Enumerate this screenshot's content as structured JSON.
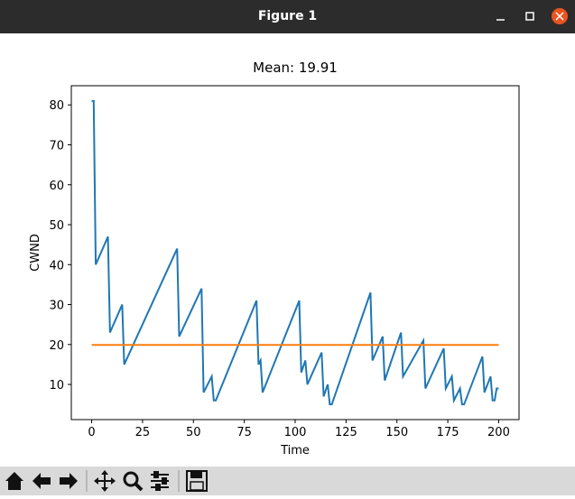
{
  "window": {
    "title": "Figure 1"
  },
  "chart_data": {
    "type": "line",
    "title": "Mean: 19.91",
    "xlabel": "Time",
    "ylabel": "CWND",
    "xlim": [
      -10,
      210
    ],
    "ylim": [
      1.2,
      84.8
    ],
    "xticks": [
      0,
      25,
      50,
      75,
      100,
      125,
      150,
      175,
      200
    ],
    "yticks": [
      10,
      20,
      30,
      40,
      50,
      60,
      70,
      80
    ],
    "series": [
      {
        "color": "#1f77b4",
        "x": [
          0,
          1,
          2,
          8,
          9,
          15,
          16,
          42,
          43,
          54,
          55,
          59,
          60,
          61,
          81,
          82,
          83,
          84,
          102,
          103,
          105,
          106,
          113,
          114,
          116,
          117,
          118,
          137,
          138,
          143,
          144,
          152,
          153,
          163,
          164,
          173,
          174,
          177,
          178,
          181,
          182,
          183,
          192,
          193,
          196,
          197,
          198,
          199,
          200
        ],
        "values": [
          81,
          81,
          40,
          47,
          23,
          30,
          15,
          44,
          22,
          34,
          8,
          12,
          6,
          6,
          31,
          15,
          16,
          8,
          31,
          13,
          16,
          10,
          18,
          7,
          10,
          5,
          5,
          33,
          16,
          22,
          11,
          23,
          12,
          21,
          9,
          19,
          9,
          12,
          6,
          9,
          5,
          5,
          17,
          8,
          12,
          6,
          6,
          9,
          9
        ]
      },
      {
        "color": "#ff7f0e",
        "x": [
          0,
          200
        ],
        "values": [
          19.91,
          19.91
        ]
      }
    ]
  }
}
